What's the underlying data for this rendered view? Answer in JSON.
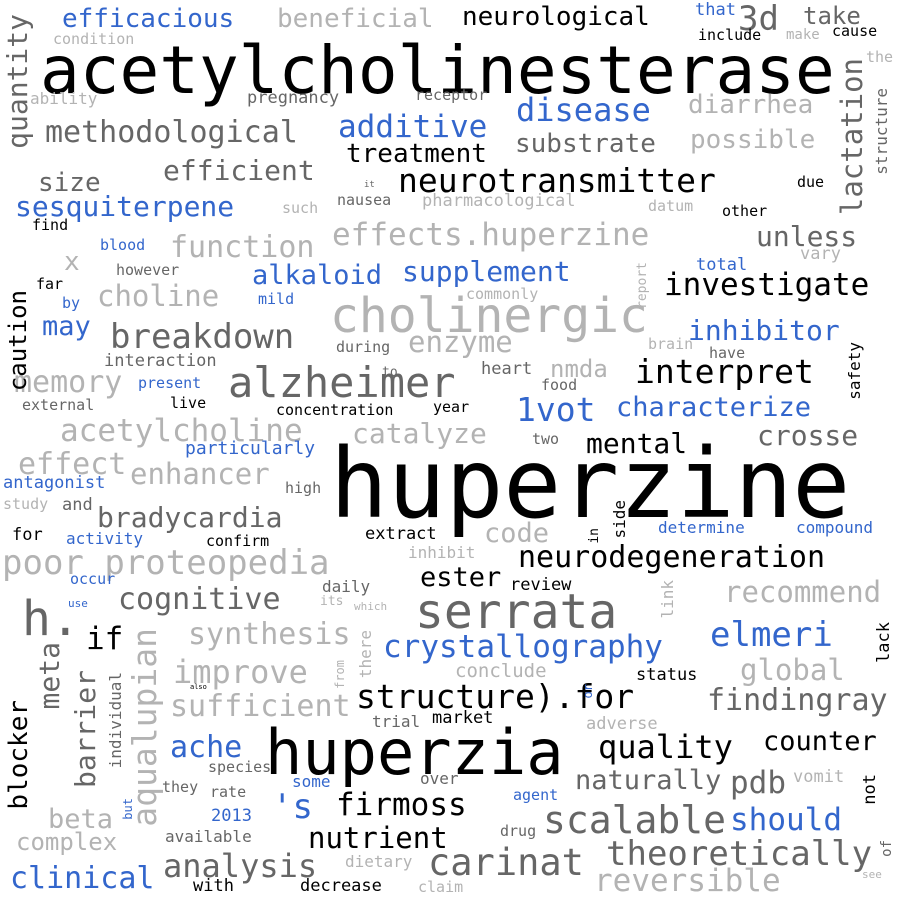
{
  "colors": {
    "black": "#000000",
    "dark_gray": "#666666",
    "light_gray": "#b3b3b3",
    "blue": "#3366cc",
    "background": "#ffffff"
  },
  "words": [
    {
      "text": "acetylcholinesterase",
      "color": "black"
    },
    {
      "text": "huperzine",
      "color": "black"
    },
    {
      "text": "huperzia",
      "color": "black"
    },
    {
      "text": "serrata",
      "color": "dark_gray"
    },
    {
      "text": "cholinergic",
      "color": "light_gray"
    },
    {
      "text": "alzheimer",
      "color": "dark_gray"
    },
    {
      "text": "neurotransmitter",
      "color": "black"
    },
    {
      "text": "neurodegeneration",
      "color": "black"
    },
    {
      "text": "structure).for",
      "color": "black"
    },
    {
      "text": "crystallography",
      "color": "blue"
    },
    {
      "text": "poor proteopedia",
      "color": "light_gray"
    },
    {
      "text": "effects.huperzine",
      "color": "light_gray"
    },
    {
      "text": "methodological",
      "color": "dark_gray"
    },
    {
      "text": "efficacious",
      "color": "blue"
    },
    {
      "text": "beneficial",
      "color": "light_gray"
    },
    {
      "text": "neurological",
      "color": "black"
    },
    {
      "text": "disease",
      "color": "blue"
    },
    {
      "text": "additive",
      "color": "blue"
    },
    {
      "text": "diarrhea",
      "color": "light_gray"
    },
    {
      "text": "treatment",
      "color": "black"
    },
    {
      "text": "substrate",
      "color": "dark_gray"
    },
    {
      "text": "possible",
      "color": "light_gray"
    },
    {
      "text": "efficient",
      "color": "dark_gray"
    },
    {
      "text": "sesquiterpene",
      "color": "blue"
    },
    {
      "text": "size",
      "color": "dark_gray"
    },
    {
      "text": "function",
      "color": "light_gray"
    },
    {
      "text": "unless",
      "color": "dark_gray"
    },
    {
      "text": "alkaloid",
      "color": "blue"
    },
    {
      "text": "supplement",
      "color": "blue"
    },
    {
      "text": "investigate",
      "color": "black"
    },
    {
      "text": "choline",
      "color": "light_gray"
    },
    {
      "text": "breakdown",
      "color": "dark_gray"
    },
    {
      "text": "inhibitor",
      "color": "blue"
    },
    {
      "text": "enzyme",
      "color": "light_gray"
    },
    {
      "text": "memory",
      "color": "light_gray"
    },
    {
      "text": "interpret",
      "color": "black"
    },
    {
      "text": "1vot",
      "color": "blue"
    },
    {
      "text": "characterize",
      "color": "blue"
    },
    {
      "text": "acetylcholine",
      "color": "light_gray"
    },
    {
      "text": "catalyze",
      "color": "light_gray"
    },
    {
      "text": "crosse",
      "color": "dark_gray"
    },
    {
      "text": "mental",
      "color": "black"
    },
    {
      "text": "effect",
      "color": "light_gray"
    },
    {
      "text": "enhancer",
      "color": "light_gray"
    },
    {
      "text": "bradycardia",
      "color": "dark_gray"
    },
    {
      "text": "code",
      "color": "light_gray"
    },
    {
      "text": "recommend",
      "color": "light_gray"
    },
    {
      "text": "ester",
      "color": "black"
    },
    {
      "text": "cognitive",
      "color": "dark_gray"
    },
    {
      "text": "synthesis",
      "color": "light_gray"
    },
    {
      "text": "improve",
      "color": "light_gray"
    },
    {
      "text": "sufficient",
      "color": "light_gray"
    },
    {
      "text": "elmeri",
      "color": "blue"
    },
    {
      "text": "global",
      "color": "light_gray"
    },
    {
      "text": "findingray",
      "color": "dark_gray"
    },
    {
      "text": "quality",
      "color": "black"
    },
    {
      "text": "counter",
      "color": "black"
    },
    {
      "text": "ache",
      "color": "blue"
    },
    {
      "text": "naturally",
      "color": "dark_gray"
    },
    {
      "text": "pdb",
      "color": "dark_gray"
    },
    {
      "text": "firmoss",
      "color": "black"
    },
    {
      "text": "scalable",
      "color": "dark_gray"
    },
    {
      "text": "should",
      "color": "blue"
    },
    {
      "text": "nutrient",
      "color": "black"
    },
    {
      "text": "theoretically",
      "color": "dark_gray"
    },
    {
      "text": "carinat",
      "color": "dark_gray"
    },
    {
      "text": "reversible",
      "color": "light_gray"
    },
    {
      "text": "analysis",
      "color": "dark_gray"
    },
    {
      "text": "clinical",
      "color": "blue"
    },
    {
      "text": "complex",
      "color": "light_gray"
    },
    {
      "text": "beta",
      "color": "light_gray"
    },
    {
      "text": "'s",
      "color": "blue"
    },
    {
      "text": "h.",
      "color": "dark_gray"
    },
    {
      "text": "3d",
      "color": "dark_gray"
    },
    {
      "text": "take",
      "color": "dark_gray"
    },
    {
      "text": "if",
      "color": "black"
    },
    {
      "text": "may",
      "color": "blue"
    },
    {
      "text": "x",
      "color": "light_gray"
    },
    {
      "text": "nmda",
      "color": "light_gray"
    },
    {
      "text": "status",
      "color": "black"
    },
    {
      "text": "conclude",
      "color": "light_gray"
    },
    {
      "text": "market",
      "color": "black"
    },
    {
      "text": "trial",
      "color": "dark_gray"
    },
    {
      "text": "adverse",
      "color": "light_gray"
    },
    {
      "text": "condition",
      "color": "light_gray"
    },
    {
      "text": "pregnancy",
      "color": "dark_gray"
    },
    {
      "text": "receptor",
      "color": "dark_gray"
    },
    {
      "text": "ability",
      "color": "light_gray"
    },
    {
      "text": "that",
      "color": "blue"
    },
    {
      "text": "include",
      "color": "black"
    },
    {
      "text": "make",
      "color": "light_gray"
    },
    {
      "text": "cause",
      "color": "black"
    },
    {
      "text": "the",
      "color": "light_gray"
    },
    {
      "text": "nausea",
      "color": "dark_gray"
    },
    {
      "text": "pharmacological",
      "color": "light_gray"
    },
    {
      "text": "datum",
      "color": "light_gray"
    },
    {
      "text": "other",
      "color": "black"
    },
    {
      "text": "due",
      "color": "black"
    },
    {
      "text": "such",
      "color": "light_gray"
    },
    {
      "text": "it",
      "color": "dark_gray"
    },
    {
      "text": "find",
      "color": "black"
    },
    {
      "text": "blood",
      "color": "blue"
    },
    {
      "text": "however",
      "color": "dark_gray"
    },
    {
      "text": "far",
      "color": "black"
    },
    {
      "text": "by",
      "color": "blue"
    },
    {
      "text": "mild",
      "color": "blue"
    },
    {
      "text": "commonly",
      "color": "light_gray"
    },
    {
      "text": "total",
      "color": "blue"
    },
    {
      "text": "vary",
      "color": "light_gray"
    },
    {
      "text": "brain",
      "color": "light_gray"
    },
    {
      "text": "have",
      "color": "dark_gray"
    },
    {
      "text": "interaction",
      "color": "dark_gray"
    },
    {
      "text": "during",
      "color": "dark_gray"
    },
    {
      "text": "to",
      "color": "dark_gray"
    },
    {
      "text": "heart",
      "color": "dark_gray"
    },
    {
      "text": "food",
      "color": "dark_gray"
    },
    {
      "text": "present",
      "color": "blue"
    },
    {
      "text": "external",
      "color": "dark_gray"
    },
    {
      "text": "live",
      "color": "black"
    },
    {
      "text": "concentration",
      "color": "black"
    },
    {
      "text": "year",
      "color": "black"
    },
    {
      "text": "two",
      "color": "dark_gray"
    },
    {
      "text": "particularly",
      "color": "blue"
    },
    {
      "text": "antagonist",
      "color": "blue"
    },
    {
      "text": "high",
      "color": "dark_gray"
    },
    {
      "text": "study",
      "color": "light_gray"
    },
    {
      "text": "and",
      "color": "dark_gray"
    },
    {
      "text": "for",
      "color": "black"
    },
    {
      "text": "activity",
      "color": "blue"
    },
    {
      "text": "confirm",
      "color": "black"
    },
    {
      "text": "extract",
      "color": "black"
    },
    {
      "text": "inhibit",
      "color": "light_gray"
    },
    {
      "text": "determine",
      "color": "blue"
    },
    {
      "text": "compound",
      "color": "blue"
    },
    {
      "text": "occur",
      "color": "blue"
    },
    {
      "text": "daily",
      "color": "dark_gray"
    },
    {
      "text": "its",
      "color": "light_gray"
    },
    {
      "text": "which",
      "color": "light_gray"
    },
    {
      "text": "review",
      "color": "black"
    },
    {
      "text": "use",
      "color": "blue"
    },
    {
      "text": "also",
      "color": "black"
    },
    {
      "text": "species",
      "color": "dark_gray"
    },
    {
      "text": "they",
      "color": "dark_gray"
    },
    {
      "text": "rate",
      "color": "dark_gray"
    },
    {
      "text": "some",
      "color": "blue"
    },
    {
      "text": "over",
      "color": "dark_gray"
    },
    {
      "text": "agent",
      "color": "blue"
    },
    {
      "text": "2013",
      "color": "blue"
    },
    {
      "text": "available",
      "color": "dark_gray"
    },
    {
      "text": "drug",
      "color": "dark_gray"
    },
    {
      "text": "vomit",
      "color": "light_gray"
    },
    {
      "text": "with",
      "color": "black"
    },
    {
      "text": "decrease",
      "color": "black"
    },
    {
      "text": "dietary",
      "color": "light_gray"
    },
    {
      "text": "claim",
      "color": "light_gray"
    },
    {
      "text": "see",
      "color": "light_gray"
    },
    {
      "text": "quantity",
      "color": "dark_gray"
    },
    {
      "text": "lactation",
      "color": "dark_gray"
    },
    {
      "text": "structure",
      "color": "dark_gray"
    },
    {
      "text": "caution",
      "color": "black"
    },
    {
      "text": "safety",
      "color": "black"
    },
    {
      "text": "report",
      "color": "light_gray"
    },
    {
      "text": "in",
      "color": "black"
    },
    {
      "text": "side",
      "color": "black"
    },
    {
      "text": "link",
      "color": "light_gray"
    },
    {
      "text": "meta",
      "color": "dark_gray"
    },
    {
      "text": "aqualupian",
      "color": "light_gray"
    },
    {
      "text": "barrier",
      "color": "dark_gray"
    },
    {
      "text": "individual",
      "color": "dark_gray"
    },
    {
      "text": "from",
      "color": "light_gray"
    },
    {
      "text": "there",
      "color": "light_gray"
    },
    {
      "text": "or",
      "color": "blue"
    },
    {
      "text": "blocker",
      "color": "black"
    },
    {
      "text": "but",
      "color": "blue"
    },
    {
      "text": "lack",
      "color": "black"
    },
    {
      "text": "not",
      "color": "black"
    },
    {
      "text": "of",
      "color": "dark_gray"
    }
  ]
}
